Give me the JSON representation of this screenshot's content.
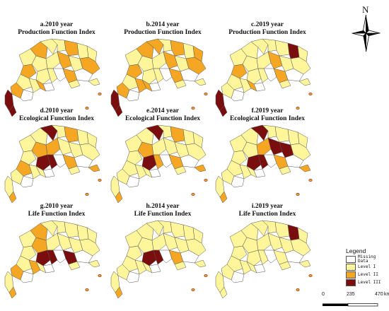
{
  "panels": [
    {
      "title": "a.2010 year",
      "subtitle": "Production Function Index",
      "levels": [
        1,
        2,
        1,
        1,
        2,
        1,
        1,
        2,
        1,
        1,
        2,
        1,
        2,
        1,
        1,
        0,
        2,
        0,
        1,
        1,
        2,
        1,
        2,
        0,
        3,
        3,
        1,
        0
      ]
    },
    {
      "title": "b.2014 year",
      "subtitle": "Production Function Index",
      "levels": [
        1,
        2,
        2,
        1,
        2,
        1,
        2,
        2,
        1,
        1,
        2,
        1,
        2,
        1,
        1,
        0,
        2,
        0,
        1,
        2,
        2,
        1,
        2,
        0,
        3,
        3,
        1,
        0
      ]
    },
    {
      "title": "c.2019 year",
      "subtitle": "Production Function Index",
      "levels": [
        1,
        1,
        1,
        1,
        1,
        3,
        1,
        2,
        1,
        1,
        2,
        1,
        1,
        1,
        1,
        0,
        2,
        0,
        1,
        1,
        2,
        1,
        1,
        0,
        3,
        3,
        1,
        0
      ]
    },
    {
      "title": "d.2010 year",
      "subtitle": "Ecological Function Index",
      "levels": [
        1,
        1,
        3,
        1,
        2,
        1,
        1,
        1,
        2,
        2,
        1,
        1,
        1,
        3,
        3,
        0,
        2,
        0,
        2,
        1,
        1,
        2,
        1,
        0,
        1,
        2,
        1,
        0
      ]
    },
    {
      "title": "e.2014 year",
      "subtitle": "Ecological Function Index",
      "levels": [
        1,
        1,
        3,
        1,
        2,
        1,
        1,
        1,
        2,
        1,
        1,
        1,
        1,
        3,
        2,
        0,
        2,
        0,
        1,
        1,
        1,
        2,
        1,
        0,
        1,
        2,
        1,
        0
      ]
    },
    {
      "title": "f.2019 year",
      "subtitle": "Ecological Function Index",
      "levels": [
        1,
        1,
        3,
        1,
        1,
        1,
        1,
        1,
        1,
        2,
        3,
        3,
        1,
        3,
        3,
        0,
        2,
        0,
        1,
        1,
        1,
        2,
        1,
        0,
        1,
        2,
        1,
        0
      ]
    },
    {
      "title": "g.2010 year",
      "subtitle": "Life Function Index",
      "levels": [
        1,
        2,
        1,
        1,
        1,
        1,
        1,
        1,
        2,
        1,
        1,
        1,
        1,
        3,
        3,
        0,
        3,
        0,
        1,
        2,
        1,
        1,
        2,
        0,
        1,
        2,
        1,
        0
      ]
    },
    {
      "title": "h.2014 year",
      "subtitle": "Life Function Index",
      "levels": [
        1,
        1,
        1,
        1,
        1,
        1,
        1,
        1,
        1,
        1,
        1,
        1,
        1,
        3,
        3,
        0,
        2,
        0,
        1,
        1,
        1,
        1,
        1,
        0,
        1,
        2,
        1,
        0
      ]
    },
    {
      "title": "i.2019 year",
      "subtitle": "Life Function Index",
      "levels": [
        1,
        1,
        1,
        1,
        1,
        3,
        1,
        1,
        1,
        1,
        1,
        1,
        1,
        1,
        1,
        0,
        1,
        0,
        1,
        1,
        1,
        1,
        1,
        0,
        1,
        1,
        1,
        0
      ]
    }
  ],
  "compass": {
    "label": "N",
    "icon": "north-arrow-compass-icon"
  },
  "legend": {
    "title": "Legend",
    "items": [
      {
        "label": "Missing\nData",
        "color": "#ffffff"
      },
      {
        "label": "Level I",
        "color": "#fff59a"
      },
      {
        "label": "Level II",
        "color": "#f5a623"
      },
      {
        "label": "Level III",
        "color": "#7a0d0d"
      }
    ]
  },
  "scalebar": {
    "ticks": [
      "0",
      "235",
      "470"
    ],
    "unit": "km"
  }
}
